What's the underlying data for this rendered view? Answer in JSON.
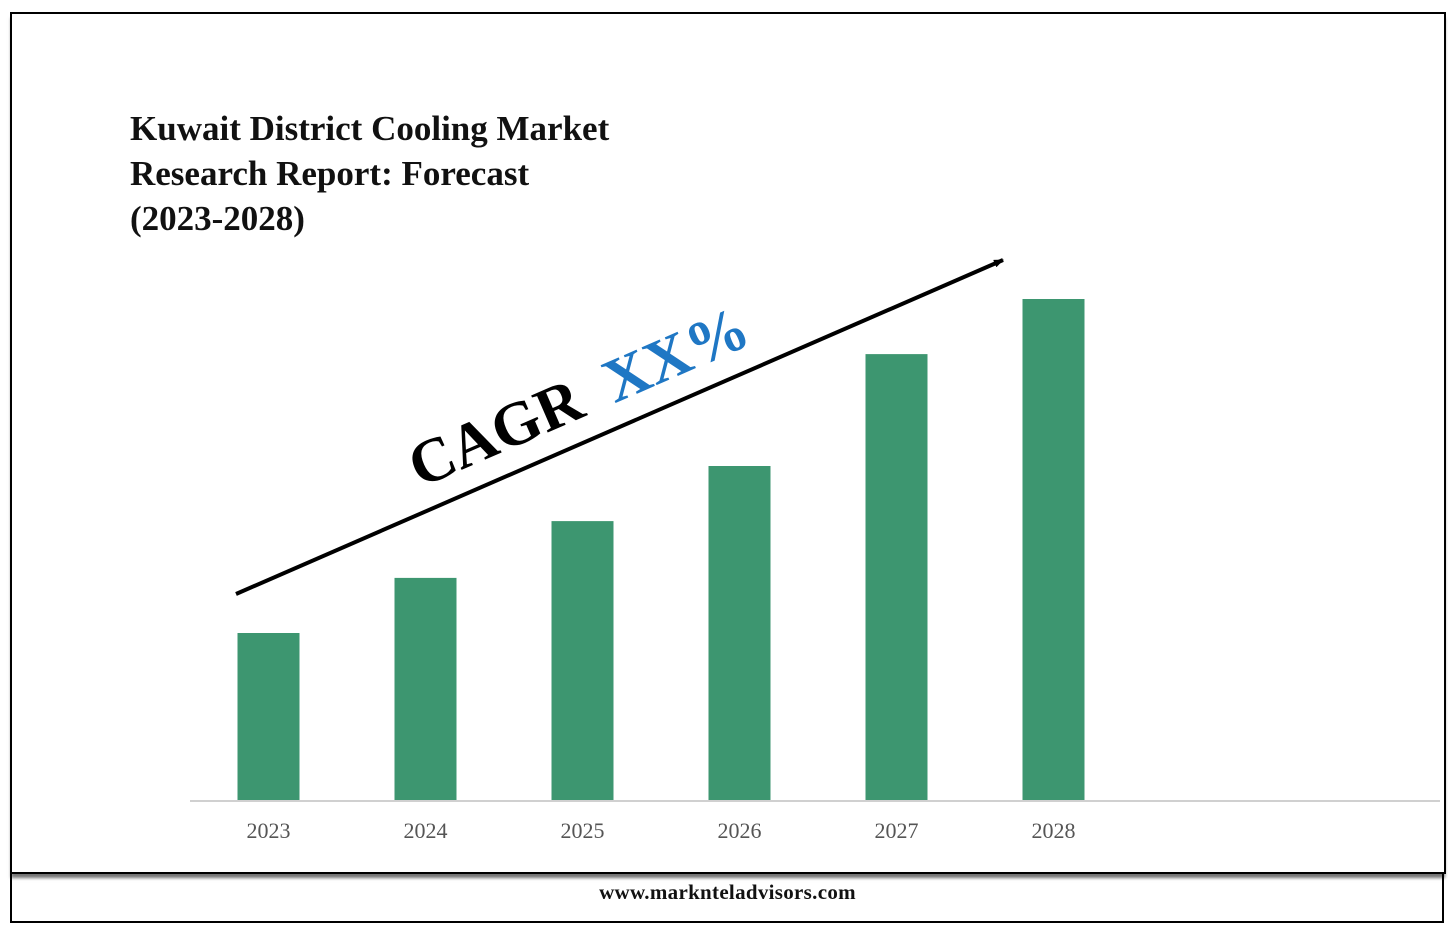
{
  "chart_data": {
    "type": "bar",
    "title_lines": [
      "Kuwait District Cooling Market",
      "Research Report: Forecast",
      "(2023-2028)"
    ],
    "categories": [
      "2023",
      "2024",
      "2025",
      "2026",
      "2027",
      "2028"
    ],
    "values": [
      1.0,
      1.33,
      1.67,
      2.0,
      2.67,
      3.0
    ],
    "ylim": [
      0,
      3.0
    ],
    "bar_color": "#3d9670",
    "grid": false,
    "legend": "none",
    "annotation": {
      "prefix": "CAGR",
      "value": "XX%",
      "prefix_color": "#000000",
      "value_color": "#1f77c4"
    }
  },
  "footer": {
    "url": "www.marknteladvisors.com"
  }
}
